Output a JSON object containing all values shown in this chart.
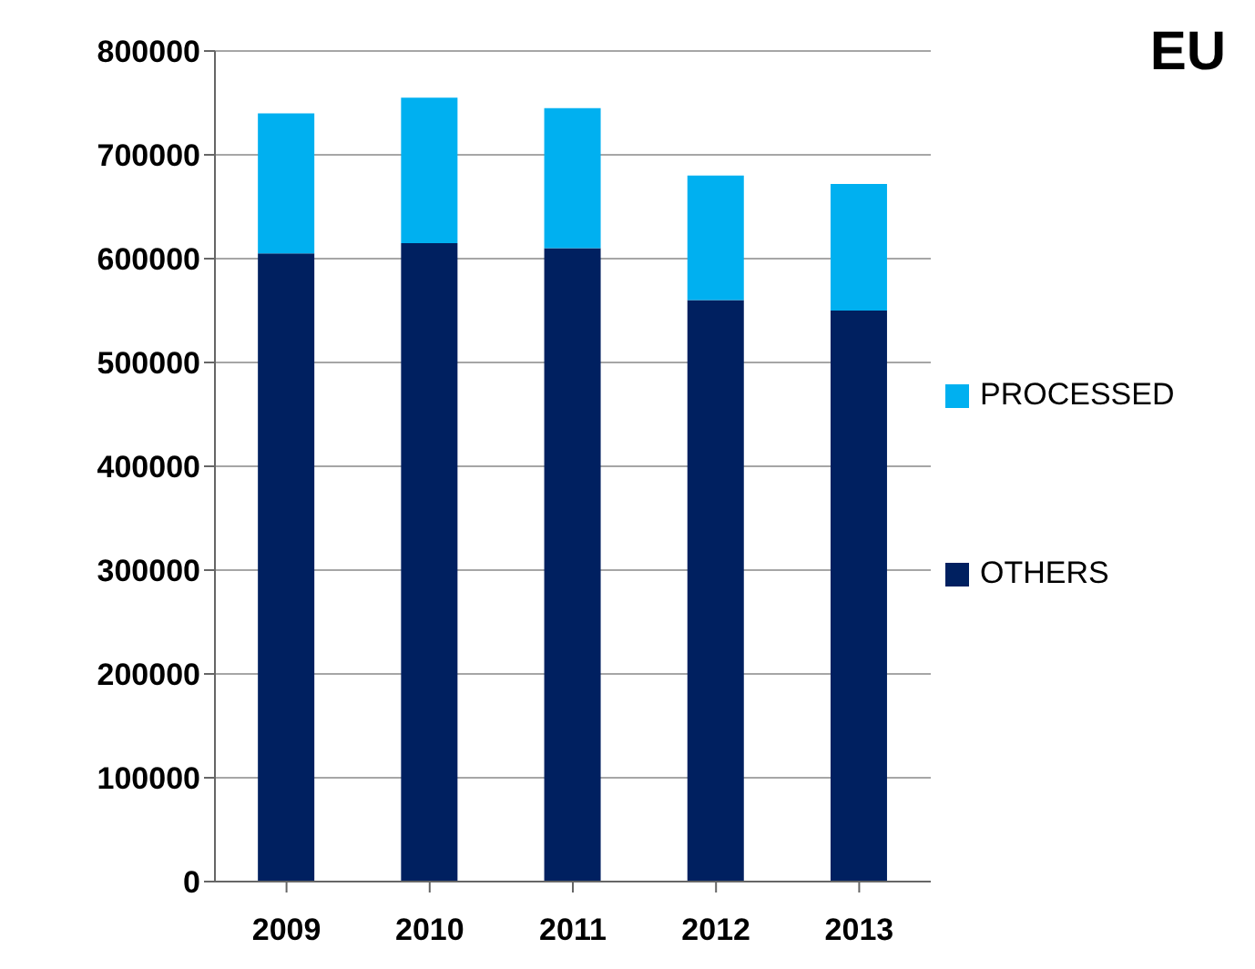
{
  "chart_data": {
    "type": "bar",
    "title": "EU",
    "stacked": true,
    "categories": [
      "2009",
      "2010",
      "2011",
      "2012",
      "2013"
    ],
    "series": [
      {
        "name": "OTHERS",
        "color": "#002060",
        "values": [
          605000,
          615000,
          610000,
          560000,
          550000
        ]
      },
      {
        "name": "PROCESSED",
        "color": "#00b0f0",
        "values": [
          135000,
          140000,
          135000,
          120000,
          122000
        ]
      }
    ],
    "ylim": [
      0,
      800000
    ],
    "yticks": [
      0,
      100000,
      200000,
      300000,
      400000,
      500000,
      600000,
      700000,
      800000
    ],
    "grid": "y",
    "legend": "right"
  }
}
